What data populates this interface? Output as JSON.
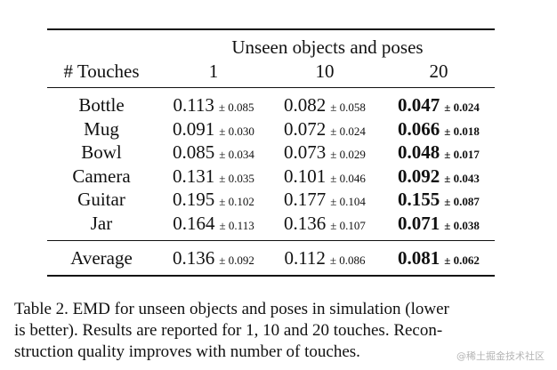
{
  "table": {
    "group_header": "Unseen objects and poses",
    "row_header": "# Touches",
    "columns": [
      "1",
      "10",
      "20"
    ],
    "rows": [
      {
        "label": "Bottle",
        "cells": [
          {
            "value": "0.113",
            "pm": "± 0.085"
          },
          {
            "value": "0.082",
            "pm": "± 0.058"
          },
          {
            "value": "0.047",
            "pm": "± 0.024"
          }
        ]
      },
      {
        "label": "Mug",
        "cells": [
          {
            "value": "0.091",
            "pm": "± 0.030"
          },
          {
            "value": "0.072",
            "pm": "± 0.024"
          },
          {
            "value": "0.066",
            "pm": "± 0.018"
          }
        ]
      },
      {
        "label": "Bowl",
        "cells": [
          {
            "value": "0.085",
            "pm": "± 0.034"
          },
          {
            "value": "0.073",
            "pm": "± 0.029"
          },
          {
            "value": "0.048",
            "pm": "± 0.017"
          }
        ]
      },
      {
        "label": "Camera",
        "cells": [
          {
            "value": "0.131",
            "pm": "± 0.035"
          },
          {
            "value": "0.101",
            "pm": "± 0.046"
          },
          {
            "value": "0.092",
            "pm": "± 0.043"
          }
        ]
      },
      {
        "label": "Guitar",
        "cells": [
          {
            "value": "0.195",
            "pm": "± 0.102"
          },
          {
            "value": "0.177",
            "pm": "± 0.104"
          },
          {
            "value": "0.155",
            "pm": "± 0.087"
          }
        ]
      },
      {
        "label": "Jar",
        "cells": [
          {
            "value": "0.164",
            "pm": "± 0.113"
          },
          {
            "value": "0.136",
            "pm": "± 0.107"
          },
          {
            "value": "0.071",
            "pm": "± 0.038"
          }
        ]
      }
    ],
    "average": {
      "label": "Average",
      "cells": [
        {
          "value": "0.136",
          "pm": "± 0.092"
        },
        {
          "value": "0.112",
          "pm": "± 0.086"
        },
        {
          "value": "0.081",
          "pm": "± 0.062"
        }
      ]
    },
    "bold_column": 2
  },
  "caption": {
    "lines": [
      "Table 2.  EMD for unseen objects and poses in simulation (lower",
      "is better).  Results are reported for 1, 10 and 20 touches.  Recon-",
      "struction quality improves with number of touches."
    ]
  },
  "watermark": "@稀土掘金技术社区"
}
